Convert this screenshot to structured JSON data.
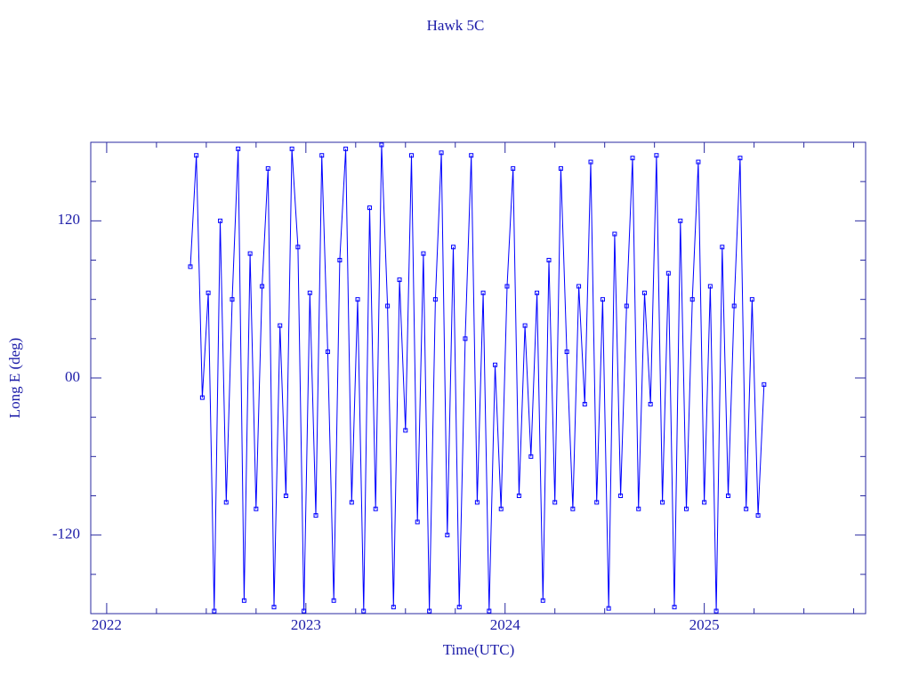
{
  "chart_data": {
    "type": "line",
    "title": "Hawk 5C",
    "xlabel": "Time(UTC)",
    "ylabel": "Long E (deg)",
    "x": [
      2022.42,
      2022.45,
      2022.48,
      2022.51,
      2022.54,
      2022.57,
      2022.6,
      2022.63,
      2022.66,
      2022.69,
      2022.72,
      2022.75,
      2022.78,
      2022.81,
      2022.84,
      2022.87,
      2022.9,
      2022.93,
      2022.96,
      2022.99,
      2023.02,
      2023.05,
      2023.08,
      2023.11,
      2023.14,
      2023.17,
      2023.2,
      2023.23,
      2023.26,
      2023.29,
      2023.32,
      2023.35,
      2023.38,
      2023.41,
      2023.44,
      2023.47,
      2023.5,
      2023.53,
      2023.56,
      2023.59,
      2023.62,
      2023.65,
      2023.68,
      2023.71,
      2023.74,
      2023.77,
      2023.8,
      2023.83,
      2023.86,
      2023.89,
      2023.92,
      2023.95,
      2023.98,
      2024.01,
      2024.04,
      2024.07,
      2024.1,
      2024.13,
      2024.16,
      2024.19,
      2024.22,
      2024.25,
      2024.28,
      2024.31,
      2024.34,
      2024.37,
      2024.4,
      2024.43,
      2024.46,
      2024.49,
      2024.52,
      2024.55,
      2024.58,
      2024.61,
      2024.64,
      2024.67,
      2024.7,
      2024.73,
      2024.76,
      2024.79,
      2024.82,
      2024.85,
      2024.88,
      2024.91,
      2024.94,
      2024.97,
      2025.0,
      2025.03,
      2025.06,
      2025.09,
      2025.12,
      2025.15,
      2025.18,
      2025.21,
      2025.24,
      2025.27,
      2025.3
    ],
    "series": [
      {
        "color": "#0000ff",
        "values": [
          85,
          170,
          -15,
          65,
          -178,
          120,
          -95,
          60,
          175,
          -170,
          95,
          -100,
          70,
          160,
          -175,
          40,
          -90,
          175,
          100,
          -178,
          65,
          -105,
          170,
          20,
          -170,
          90,
          175,
          -95,
          60,
          -178,
          130,
          -100,
          178,
          55,
          -175,
          75,
          -40,
          170,
          -110,
          95,
          -178,
          60,
          172,
          -120,
          100,
          -175,
          30,
          170,
          -95,
          65,
          -178,
          10,
          -100,
          70,
          160,
          -90,
          40,
          -60,
          65,
          -170,
          90,
          -95,
          160,
          20,
          -100,
          70,
          -20,
          165,
          -95,
          60,
          -176,
          110,
          -90,
          55,
          168,
          -100,
          65,
          -20,
          170,
          -95,
          80,
          -175,
          120,
          -100,
          60,
          165,
          -95,
          70,
          -178,
          100,
          -90,
          55,
          168,
          -100,
          60,
          -105,
          -5
        ]
      }
    ],
    "xlim": [
      2021.92,
      2025.81
    ],
    "xticks": [
      2022,
      2023,
      2024,
      2025
    ],
    "xminorticks": [
      2022.25,
      2022.5,
      2022.75,
      2023.25,
      2023.5,
      2023.75,
      2024.25,
      2024.5,
      2024.75,
      2025.25,
      2025.5,
      2025.75
    ],
    "ylim": [
      -180,
      180
    ],
    "yticks": [
      -120,
      {
        "value": 0,
        "label": "00"
      },
      120
    ],
    "yminorticks": [
      -150,
      -90,
      -60,
      -30,
      30,
      60,
      90,
      150
    ],
    "markers": true
  }
}
